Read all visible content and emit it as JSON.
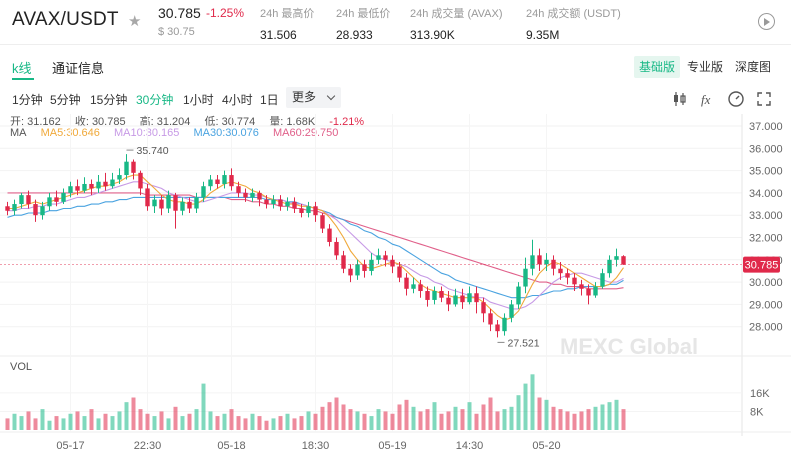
{
  "header": {
    "pair": "AVAX/USDT",
    "price": "30.785",
    "change": "-1.25%",
    "price_usd": "$ 30.75",
    "stats": [
      {
        "label": "24h 最高价",
        "value": "31.506"
      },
      {
        "label": "24h 最低价",
        "value": "28.933"
      },
      {
        "label": "24h 成交量 (AVAX)",
        "value": "313.90K"
      },
      {
        "label": "24h 成交额 (USDT)",
        "value": "9.35M"
      }
    ]
  },
  "tabs": {
    "kline": "k线",
    "info": "通证信息"
  },
  "views": [
    "基础版",
    "专业版",
    "深度图"
  ],
  "intervals": [
    "1分钟",
    "5分钟",
    "15分钟",
    "30分钟",
    "1小时",
    "4小时",
    "1日"
  ],
  "active_interval": "30分钟",
  "more_label": "更多",
  "ohlc": {
    "open": "开: 31.162",
    "close": "收: 30.785",
    "high": "高: 31.204",
    "low": "低: 30.774",
    "volume": "量: 1.68K",
    "change": "-1.21%"
  },
  "ma": {
    "label": "MA",
    "ma5": "MA5:30.646",
    "ma10": "MA10:30.165",
    "ma30": "MA30:30.076",
    "ma60": "MA60:29.750"
  },
  "vol_label": "VOL",
  "watermark": "MEXC Global",
  "colors": {
    "up": "#18b886",
    "down": "#e0294a",
    "ma5": "#f0a93a",
    "ma10": "#c79ae6",
    "ma30": "#4aa3e0",
    "ma60": "#e0608a",
    "accent": "#18b886"
  },
  "chart_data": {
    "type": "candlestick",
    "y_ticks": [
      "37.000",
      "36.000",
      "35.000",
      "34.000",
      "33.000",
      "32.000",
      "31.000",
      "30.000",
      "29.000",
      "28.000"
    ],
    "ylim": [
      27.0,
      37.5
    ],
    "x_ticks": [
      "05-17",
      "22:30",
      "05-18",
      "18:30",
      "05-19",
      "14:30",
      "05-20"
    ],
    "vol_ticks": [
      "16K",
      "8K"
    ],
    "last_price_label": "30.785",
    "annotations": [
      {
        "label": "35.740",
        "value": 35.74,
        "kind": "high"
      },
      {
        "label": "27.521",
        "value": 27.521,
        "kind": "low"
      }
    ],
    "ohlc": [
      [
        33.4,
        33.2,
        33.6,
        33.0
      ],
      [
        33.2,
        33.5,
        33.7,
        33.0
      ],
      [
        33.5,
        33.9,
        34.0,
        33.3
      ],
      [
        33.9,
        33.5,
        34.1,
        33.3
      ],
      [
        33.5,
        33.0,
        33.7,
        32.7
      ],
      [
        33.0,
        33.4,
        33.6,
        32.8
      ],
      [
        33.4,
        33.8,
        34.0,
        33.2
      ],
      [
        33.8,
        33.6,
        34.1,
        33.4
      ],
      [
        33.6,
        34.0,
        34.2,
        33.5
      ],
      [
        34.0,
        34.3,
        34.5,
        33.8
      ],
      [
        34.3,
        34.1,
        34.6,
        33.9
      ],
      [
        34.1,
        34.4,
        34.7,
        34.0
      ],
      [
        34.4,
        34.2,
        34.6,
        33.9
      ],
      [
        34.2,
        34.5,
        34.8,
        34.0
      ],
      [
        34.5,
        34.3,
        34.9,
        34.1
      ],
      [
        34.3,
        34.6,
        34.9,
        34.2
      ],
      [
        34.6,
        34.8,
        35.1,
        34.4
      ],
      [
        34.8,
        35.4,
        35.74,
        34.6
      ],
      [
        35.4,
        34.9,
        35.5,
        34.6
      ],
      [
        34.9,
        34.2,
        35.0,
        33.9
      ],
      [
        34.2,
        33.4,
        34.4,
        33.2
      ],
      [
        33.4,
        33.7,
        33.9,
        33.1
      ],
      [
        33.7,
        33.3,
        33.9,
        33.0
      ],
      [
        33.3,
        33.9,
        34.1,
        33.1
      ],
      [
        33.9,
        33.2,
        34.0,
        32.4
      ],
      [
        33.2,
        33.6,
        33.8,
        33.0
      ],
      [
        33.6,
        33.3,
        33.8,
        33.1
      ],
      [
        33.3,
        33.8,
        34.0,
        33.1
      ],
      [
        33.8,
        34.3,
        34.5,
        33.6
      ],
      [
        34.3,
        34.6,
        34.8,
        34.1
      ],
      [
        34.6,
        34.4,
        34.8,
        34.2
      ],
      [
        34.4,
        34.8,
        35.0,
        34.2
      ],
      [
        34.8,
        34.3,
        35.1,
        34.1
      ],
      [
        34.3,
        34.0,
        34.5,
        33.8
      ],
      [
        34.0,
        33.8,
        34.2,
        33.6
      ],
      [
        33.8,
        34.0,
        34.2,
        33.6
      ],
      [
        34.0,
        33.7,
        34.1,
        33.4
      ],
      [
        33.7,
        33.5,
        33.9,
        33.3
      ],
      [
        33.5,
        33.7,
        33.9,
        33.3
      ],
      [
        33.7,
        33.4,
        33.9,
        33.2
      ],
      [
        33.4,
        33.6,
        33.8,
        33.2
      ],
      [
        33.6,
        33.3,
        33.8,
        33.1
      ],
      [
        33.3,
        33.1,
        33.5,
        32.9
      ],
      [
        33.1,
        33.4,
        33.6,
        32.9
      ],
      [
        33.4,
        33.0,
        33.6,
        32.7
      ],
      [
        33.0,
        32.4,
        33.1,
        32.2
      ],
      [
        32.4,
        31.8,
        32.6,
        31.6
      ],
      [
        31.8,
        31.2,
        32.0,
        31.0
      ],
      [
        31.2,
        30.6,
        31.4,
        30.4
      ],
      [
        30.6,
        30.3,
        30.8,
        30.0
      ],
      [
        30.3,
        30.8,
        31.0,
        30.1
      ],
      [
        30.8,
        30.5,
        31.0,
        30.2
      ],
      [
        30.5,
        31.0,
        31.3,
        30.3
      ],
      [
        31.0,
        31.2,
        31.5,
        30.8
      ],
      [
        31.2,
        31.0,
        31.4,
        30.7
      ],
      [
        31.0,
        30.7,
        31.2,
        30.4
      ],
      [
        30.7,
        30.2,
        30.9,
        30.0
      ],
      [
        30.2,
        29.7,
        30.4,
        29.4
      ],
      [
        29.7,
        29.9,
        30.2,
        29.5
      ],
      [
        29.9,
        29.6,
        30.1,
        29.3
      ],
      [
        29.6,
        29.2,
        29.8,
        28.9
      ],
      [
        29.2,
        29.6,
        29.8,
        29.0
      ],
      [
        29.6,
        29.3,
        29.8,
        29.1
      ],
      [
        29.3,
        29.0,
        29.6,
        28.7
      ],
      [
        29.0,
        29.4,
        29.7,
        28.9
      ],
      [
        29.4,
        29.1,
        29.7,
        28.8
      ],
      [
        29.1,
        29.5,
        29.8,
        29.0
      ],
      [
        29.5,
        29.1,
        29.8,
        28.6
      ],
      [
        29.1,
        28.6,
        29.3,
        28.2
      ],
      [
        28.6,
        28.1,
        28.8,
        27.8
      ],
      [
        28.1,
        27.8,
        28.3,
        27.521
      ],
      [
        27.8,
        28.4,
        28.6,
        27.6
      ],
      [
        28.4,
        29.0,
        29.2,
        28.2
      ],
      [
        29.0,
        29.8,
        30.0,
        28.8
      ],
      [
        29.8,
        30.6,
        31.1,
        29.5
      ],
      [
        30.6,
        31.2,
        31.9,
        30.3
      ],
      [
        31.2,
        30.8,
        31.5,
        30.5
      ],
      [
        30.8,
        31.0,
        31.3,
        30.5
      ],
      [
        31.0,
        30.6,
        31.2,
        30.3
      ],
      [
        30.6,
        30.4,
        30.9,
        30.1
      ],
      [
        30.4,
        30.2,
        30.6,
        29.9
      ],
      [
        30.2,
        29.9,
        30.4,
        29.6
      ],
      [
        29.9,
        29.7,
        30.1,
        29.4
      ],
      [
        29.7,
        29.4,
        29.9,
        29.0
      ],
      [
        29.4,
        29.8,
        30.0,
        29.3
      ],
      [
        29.8,
        30.4,
        30.6,
        29.7
      ],
      [
        30.4,
        31.0,
        31.2,
        30.2
      ],
      [
        31.0,
        31.162,
        31.5,
        30.7
      ],
      [
        31.162,
        30.785,
        31.204,
        30.774
      ]
    ],
    "ma5": [
      33.3,
      33.3,
      33.4,
      33.5,
      33.6,
      33.5,
      33.6,
      33.7,
      33.8,
      33.9,
      34.0,
      34.1,
      34.2,
      34.3,
      34.3,
      34.4,
      34.5,
      34.7,
      34.8,
      34.8,
      34.5,
      34.2,
      33.9,
      33.7,
      33.6,
      33.6,
      33.5,
      33.5,
      33.7,
      34.0,
      34.2,
      34.4,
      34.5,
      34.4,
      34.3,
      34.1,
      34.0,
      33.8,
      33.7,
      33.6,
      33.5,
      33.5,
      33.4,
      33.4,
      33.3,
      33.2,
      32.9,
      32.5,
      32.0,
      31.4,
      31.0,
      30.7,
      30.6,
      30.7,
      30.8,
      30.9,
      30.8,
      30.5,
      30.2,
      29.9,
      29.7,
      29.6,
      29.5,
      29.4,
      29.3,
      29.3,
      29.3,
      29.3,
      29.1,
      28.8,
      28.5,
      28.3,
      28.4,
      28.7,
      29.3,
      29.9,
      30.4,
      30.7,
      30.9,
      30.8,
      30.6,
      30.4,
      30.2,
      30.0,
      29.8,
      29.8,
      29.9,
      30.2,
      30.646
    ],
    "ma10": [
      33.2,
      33.2,
      33.3,
      33.3,
      33.4,
      33.4,
      33.5,
      33.5,
      33.6,
      33.7,
      33.8,
      33.8,
      33.9,
      34.0,
      34.1,
      34.2,
      34.3,
      34.4,
      34.5,
      34.5,
      34.4,
      34.3,
      34.2,
      34.0,
      33.9,
      33.8,
      33.7,
      33.6,
      33.6,
      33.7,
      33.8,
      33.9,
      34.0,
      34.0,
      34.0,
      33.9,
      33.9,
      33.8,
      33.7,
      33.7,
      33.6,
      33.5,
      33.5,
      33.4,
      33.3,
      33.2,
      33.0,
      32.8,
      32.5,
      32.2,
      31.9,
      31.6,
      31.3,
      31.1,
      31.0,
      30.9,
      30.8,
      30.7,
      30.5,
      30.3,
      30.2,
      30.0,
      29.9,
      29.7,
      29.6,
      29.5,
      29.4,
      29.3,
      29.3,
      29.1,
      29.0,
      28.9,
      28.8,
      28.8,
      28.9,
      29.1,
      29.4,
      29.7,
      30.0,
      30.2,
      30.3,
      30.4,
      30.4,
      30.3,
      30.2,
      30.1,
      30.0,
      30.0,
      30.165
    ],
    "ma30": [
      32.9,
      33.0,
      33.0,
      33.1,
      33.1,
      33.1,
      33.2,
      33.2,
      33.3,
      33.3,
      33.4,
      33.4,
      33.5,
      33.5,
      33.6,
      33.6,
      33.7,
      33.7,
      33.8,
      33.8,
      33.8,
      33.8,
      33.8,
      33.8,
      33.8,
      33.8,
      33.8,
      33.8,
      33.8,
      33.8,
      33.8,
      33.8,
      33.8,
      33.8,
      33.8,
      33.8,
      33.8,
      33.7,
      33.7,
      33.7,
      33.6,
      33.6,
      33.5,
      33.4,
      33.3,
      33.2,
      33.1,
      32.9,
      32.8,
      32.6,
      32.5,
      32.3,
      32.2,
      32.0,
      31.9,
      31.7,
      31.6,
      31.4,
      31.2,
      31.0,
      30.8,
      30.6,
      30.4,
      30.3,
      30.1,
      30.0,
      29.9,
      29.8,
      29.7,
      29.6,
      29.5,
      29.4,
      29.3,
      29.3,
      29.3,
      29.4,
      29.4,
      29.5,
      29.6,
      29.6,
      29.7,
      29.7,
      29.8,
      29.8,
      29.8,
      29.8,
      29.9,
      29.9,
      30.076
    ],
    "ma60": [
      34.0,
      34.0,
      34.0,
      34.0,
      34.0,
      34.0,
      34.0,
      34.0,
      34.0,
      34.0,
      34.0,
      34.0,
      34.0,
      34.0,
      34.0,
      34.0,
      34.0,
      34.0,
      34.0,
      34.0,
      33.9,
      33.9,
      33.9,
      33.9,
      33.9,
      33.9,
      33.9,
      33.8,
      33.8,
      33.8,
      33.8,
      33.8,
      33.7,
      33.7,
      33.7,
      33.6,
      33.6,
      33.5,
      33.5,
      33.4,
      33.4,
      33.3,
      33.3,
      33.2,
      33.2,
      33.1,
      33.0,
      32.9,
      32.8,
      32.7,
      32.6,
      32.5,
      32.4,
      32.3,
      32.2,
      32.1,
      32.0,
      31.9,
      31.8,
      31.7,
      31.6,
      31.5,
      31.4,
      31.3,
      31.2,
      31.1,
      31.0,
      30.9,
      30.8,
      30.7,
      30.6,
      30.5,
      30.4,
      30.3,
      30.2,
      30.1,
      30.0,
      30.0,
      29.9,
      29.9,
      29.8,
      29.8,
      29.8,
      29.7,
      29.7,
      29.7,
      29.7,
      29.7,
      29.75
    ],
    "volumes": [
      5,
      7,
      6,
      8,
      5,
      9,
      4,
      6,
      5,
      7,
      8,
      6,
      9,
      5,
      7,
      6,
      8,
      12,
      14,
      9,
      7,
      6,
      8,
      5,
      10,
      6,
      7,
      9,
      20,
      8,
      6,
      7,
      9,
      6,
      5,
      7,
      6,
      4,
      5,
      6,
      7,
      5,
      6,
      8,
      7,
      10,
      12,
      14,
      11,
      9,
      8,
      7,
      6,
      9,
      8,
      7,
      11,
      13,
      10,
      8,
      9,
      12,
      7,
      8,
      10,
      9,
      12,
      7,
      11,
      14,
      8,
      9,
      10,
      15,
      20,
      24,
      14,
      13,
      10,
      9,
      8,
      7,
      8,
      9,
      10,
      11,
      12,
      13,
      9
    ]
  }
}
